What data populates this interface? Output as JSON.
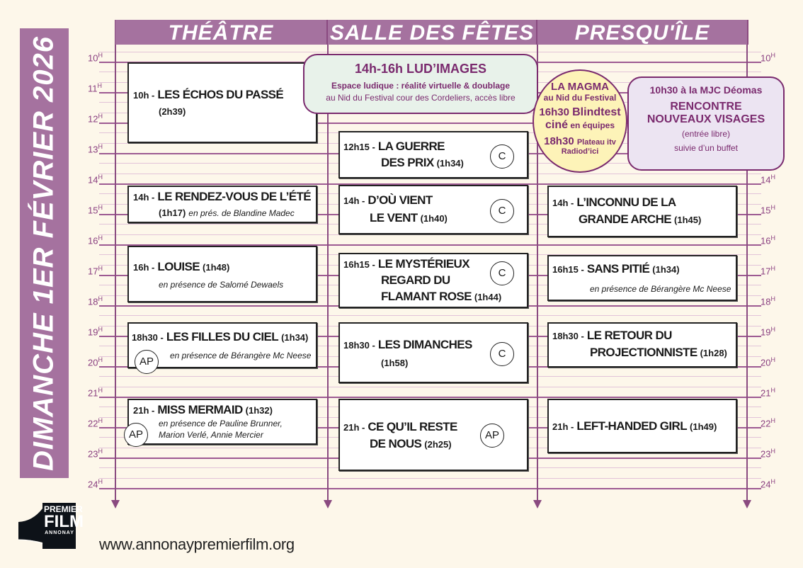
{
  "day_banner": "DIMANCHE 1ER FÉVRIER 2026",
  "columns": [
    "THÉÂTRE",
    "SALLE DES FÊTES",
    "PRESQU'ÎLE"
  ],
  "hours": [
    "10",
    "11",
    "12",
    "13",
    "14",
    "15",
    "16",
    "17",
    "18",
    "19",
    "20",
    "21",
    "22",
    "23",
    "24"
  ],
  "hour_suffix": "H",
  "colors": {
    "purple": "#a5729f",
    "dark_purple": "#7a2a6e",
    "background": "#fdf7ea",
    "green_box": "#e8f2ea",
    "lilac_box": "#ece4f2",
    "yellow_circle": "#fdf3b8"
  },
  "theatre": [
    {
      "time": "10h -",
      "title": "LES ÉCHOS DU PASSÉ",
      "duration": "(2h39)"
    },
    {
      "time": "14h -",
      "title": "LE RENDEZ-VOUS DE L’ÉTÉ",
      "duration": "(1h17)",
      "guest": "en prés. de Blandine Madec"
    },
    {
      "time": "16h -",
      "title": "LOUISE",
      "duration": "(1h48)",
      "guest": "en présence de Salomé Dewaels"
    },
    {
      "time": "18h30 -",
      "title": "LES FILLES DU CIEL",
      "duration": "(1h34)",
      "guest": "en présence de Bérangère Mc Neese",
      "badge": "AP"
    },
    {
      "time": "21h -",
      "title": "MISS MERMAID",
      "duration": "(1h32)",
      "guest1": "en présence de Pauline Brunner,",
      "guest2": "Marion Verlé, Annie Mercier",
      "badge": "AP"
    }
  ],
  "salle": [
    {
      "time": "12h15 -",
      "title1": "LA GUERRE",
      "title2": "DES PRIX",
      "duration": "(1h34)",
      "badge": "C"
    },
    {
      "time": "14h -",
      "title1": "D’OÙ VIENT",
      "title2": "LE VENT",
      "duration": "(1h40)",
      "badge": "C"
    },
    {
      "time": "16h15 -",
      "title1": "LE MYSTÉRIEUX",
      "title2": "REGARD DU",
      "title3": "FLAMANT ROSE",
      "duration": "(1h44)",
      "badge": "C"
    },
    {
      "time": "18h30 -",
      "title1": "LES DIMANCHES",
      "duration": "(1h58)",
      "badge": "C"
    },
    {
      "time": "21h -",
      "title1": "CE QU’IL RESTE",
      "title2": "DE NOUS",
      "duration": "(2h25)",
      "badge": "AP"
    }
  ],
  "presquile": [
    {
      "time": "14h -",
      "title1": "L’INCONNU DE LA",
      "title2": "GRANDE ARCHE",
      "duration": "(1h45)"
    },
    {
      "time": "16h15 -",
      "title1": "SANS PITIÉ",
      "duration": "(1h34)",
      "guest": "en présence de Bérangère Mc Neese"
    },
    {
      "time": "18h30 -",
      "title1": "LE RETOUR DU",
      "title2": "PROJECTIONNISTE",
      "duration": "(1h28)"
    },
    {
      "time": "21h -",
      "title1": "LEFT-HANDED GIRL",
      "duration": "(1h49)"
    }
  ],
  "ludimages": {
    "title": "14h-16h LUD’IMAGES",
    "line1": "Espace ludique : réalité virtuelle & doublage",
    "line2": "au Nid du Festival cour des Cordeliers, accès libre"
  },
  "magma": {
    "l1": "LA MAGMA",
    "l2": "au Nid du Festival",
    "l3a": "16h30",
    "l3b": "Blindtest",
    "l4a": "ciné",
    "l4b": "en équipes",
    "l5a": "18h30",
    "l5b": "Plateau itv",
    "l6": "Radiod’ici"
  },
  "mjc": {
    "l1": "10h30 à la MJC Déomas",
    "l2": "RENCONTRE",
    "l3": "NOUVEAUX VISAGES",
    "l4": "(entrée libre)",
    "l5": "suivie d’un buffet"
  },
  "logo": {
    "l1": "PREMIER",
    "l2": "FILM",
    "l3": "ANNONAY"
  },
  "website": "www.annonaypremierfilm.org"
}
